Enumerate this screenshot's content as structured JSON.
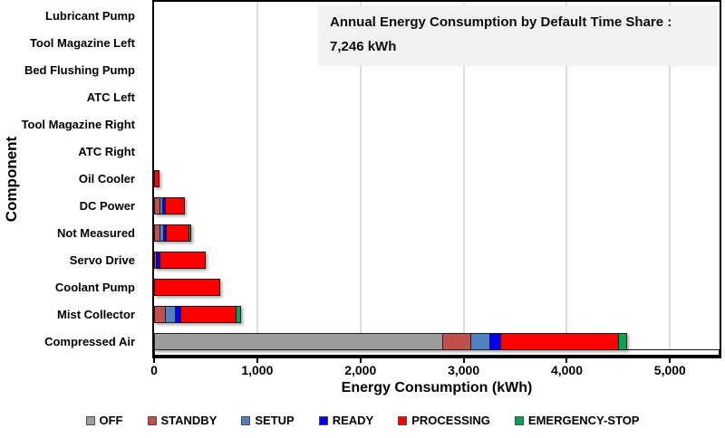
{
  "title_box": {
    "line1": "Annual Energy Consumption by Default Time Share :",
    "line2": "7,246 kWh"
  },
  "chart_data": {
    "type": "bar",
    "orientation": "horizontal",
    "stacked": true,
    "title": "Annual Energy Consumption by Default Time Share : 7,246 kWh",
    "total_label": "7,246 kWh",
    "xlabel": "Energy Consumption (kWh)",
    "ylabel": "Component",
    "xlim": [
      0,
      5480
    ],
    "xticks": [
      0,
      1000,
      2000,
      3000,
      4000,
      5000
    ],
    "xtick_labels": [
      "0",
      "1,000",
      "2,000",
      "3,000",
      "4,000",
      "5,000"
    ],
    "grid": true,
    "legend_position": "bottom",
    "categories": [
      "Lubricant Pump",
      "Tool Magazine Left",
      "Bed Flushing Pump",
      "ATC Left",
      "Tool Magazine Right",
      "ATC Right",
      "Oil Cooler",
      "DC Power",
      "Not Measured",
      "Servo Drive",
      "Coolant Pump",
      "Mist Collector",
      "Compressed Air"
    ],
    "series": [
      {
        "name": "OFF",
        "color": "#9C9C9C",
        "values": [
          0,
          0,
          0,
          0,
          0,
          0,
          0,
          0,
          0,
          0,
          0,
          0,
          2805
        ]
      },
      {
        "name": "STANDBY",
        "color": "#C0504D",
        "values": [
          0,
          0,
          0,
          0,
          0,
          0,
          0,
          60,
          60,
          25,
          0,
          115,
          270
        ]
      },
      {
        "name": "SETUP",
        "color": "#4F81BD",
        "values": [
          0,
          0,
          0,
          0,
          0,
          0,
          0,
          25,
          40,
          0,
          0,
          95,
          185
        ]
      },
      {
        "name": "READY",
        "color": "#0000FF",
        "values": [
          0,
          0,
          0,
          0,
          0,
          0,
          0,
          25,
          25,
          35,
          0,
          55,
          105
        ]
      },
      {
        "name": "PROCESSING",
        "color": "#FF0000",
        "values": [
          0,
          0,
          0,
          0,
          0,
          0,
          50,
          190,
          215,
          445,
          640,
          530,
          1140
        ]
      },
      {
        "name": "EMERGENCY-STOP",
        "color": "#00A650",
        "values": [
          0,
          0,
          0,
          0,
          0,
          0,
          0,
          0,
          20,
          0,
          0,
          45,
          80
        ]
      }
    ],
    "colors": {
      "gridline": "#DCDCDC",
      "plot_border": "#000000",
      "title_box_bg": "#F1F1F1"
    }
  }
}
